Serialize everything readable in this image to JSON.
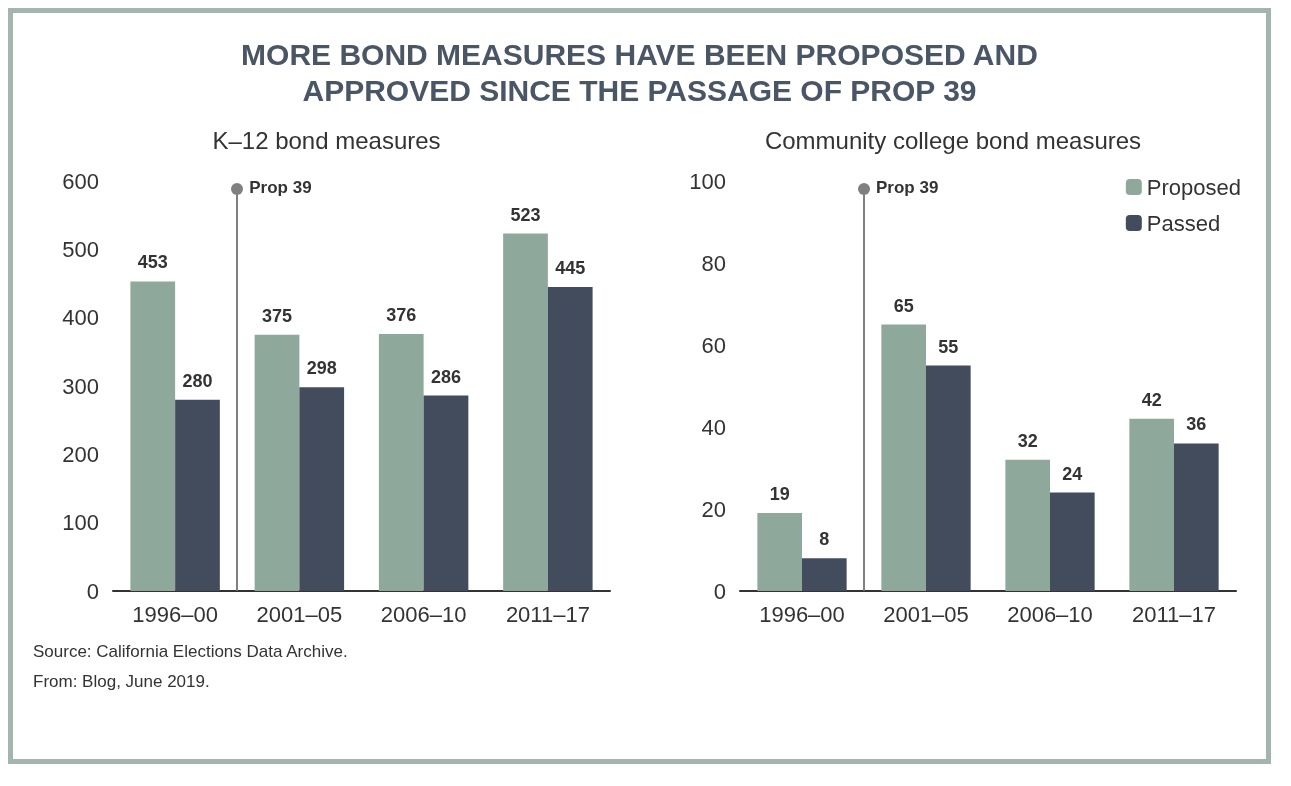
{
  "chart_data": [
    {
      "type": "bar",
      "title": "MORE BOND MEASURES HAVE BEEN PROPOSED AND APPROVED SINCE THE PASSAGE OF PROP 39",
      "subtitle": "K–12 bond measures",
      "categories": [
        "1996–00",
        "2001–05",
        "2006–10",
        "2011–17"
      ],
      "series": [
        {
          "color": "#8ea99b",
          "values": [
            453,
            375,
            376,
            523
          ]
        },
        {
          "color": "#434c5d",
          "values": [
            280,
            298,
            286,
            445
          ]
        }
      ],
      "ylim": [
        0,
        600
      ],
      "yticks": [
        0,
        100,
        200,
        300,
        400,
        500,
        600
      ],
      "grid": false,
      "legend": false,
      "data_labels": true,
      "annotations": [
        "Prop 39",
        "Source: California Elections Data Archive.",
        "From: Blog, June 2019."
      ]
    },
    {
      "type": "bar",
      "subtitle": "Community college bond measures",
      "categories": [
        "1996–00",
        "2001–05",
        "2006–10",
        "2011–17"
      ],
      "series": [
        {
          "name": "Proposed",
          "color": "#8ea99b",
          "values": [
            19,
            65,
            32,
            42
          ]
        },
        {
          "name": "Passed",
          "color": "#434c5d",
          "values": [
            8,
            55,
            24,
            36
          ]
        }
      ],
      "ylim": [
        0,
        100
      ],
      "yticks": [
        0,
        20,
        40,
        60,
        80,
        100
      ],
      "grid": false,
      "legend": "top right",
      "data_labels": true,
      "annotations": [
        "Prop 39"
      ]
    }
  ]
}
